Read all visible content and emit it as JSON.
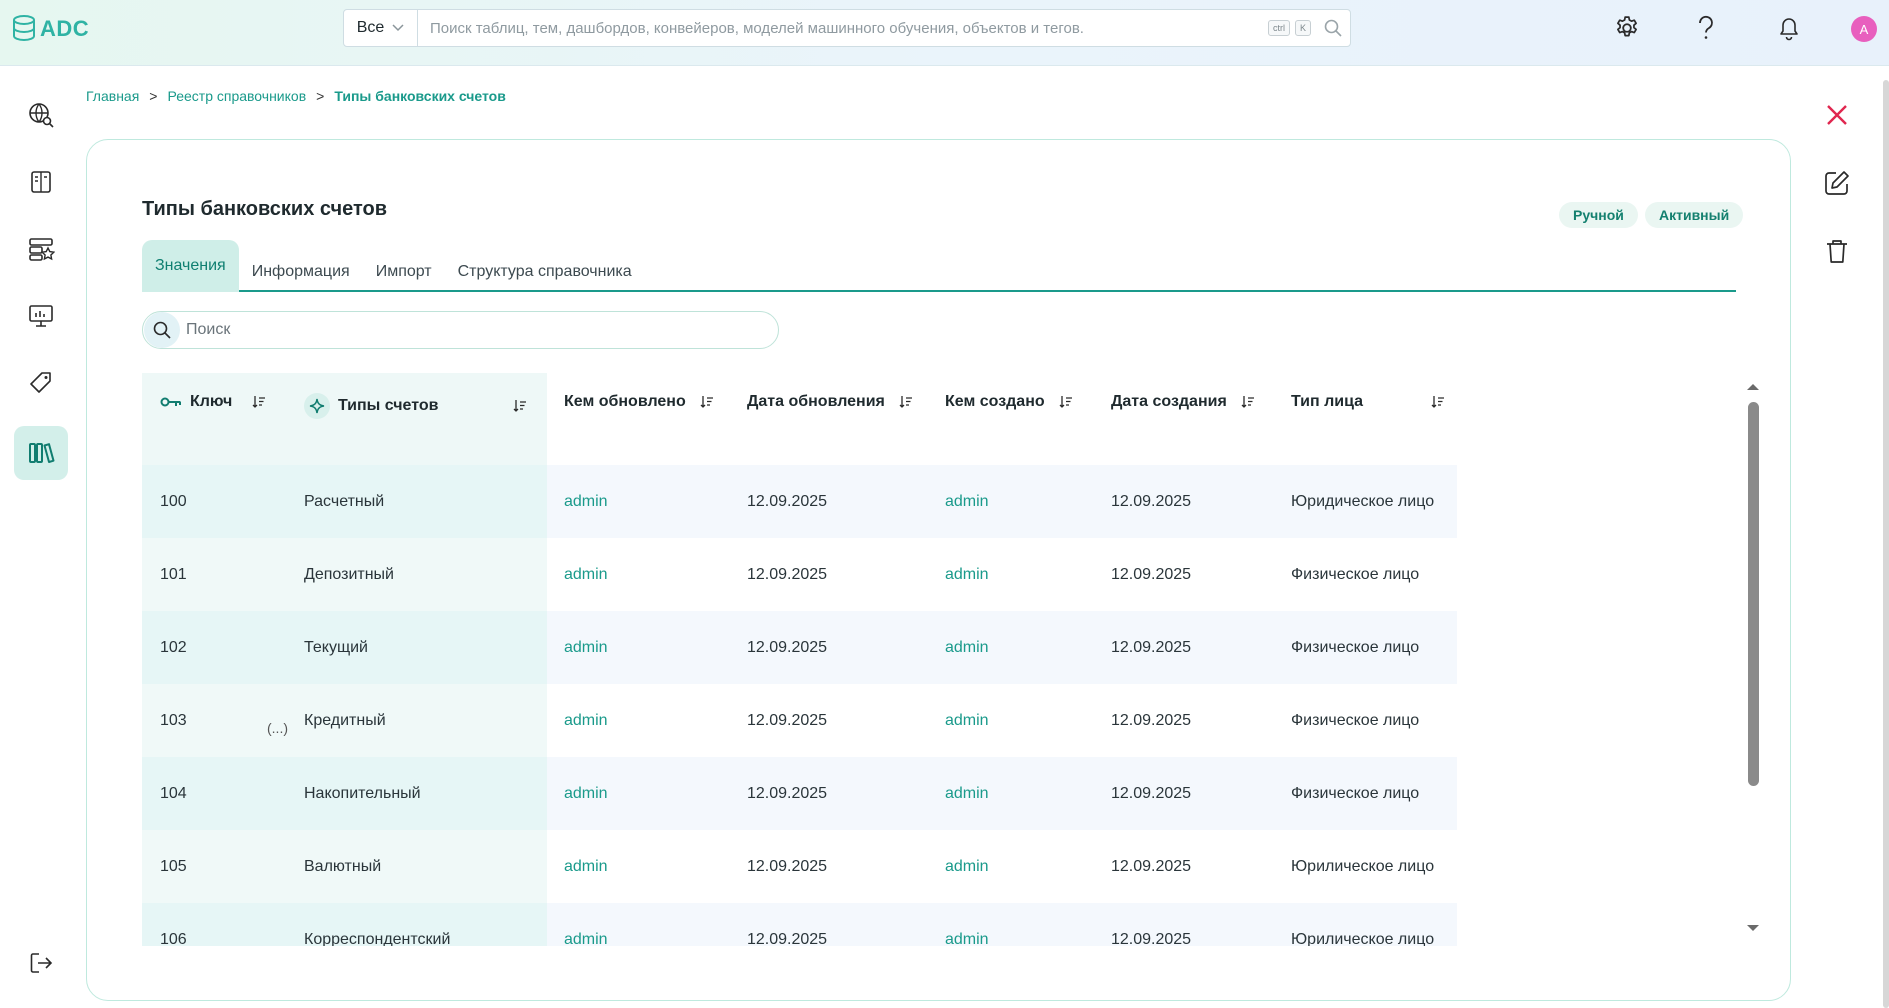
{
  "app": {
    "logo_text": "ADC",
    "brand_color": "#2fb3a4",
    "search": {
      "scope": "Все",
      "placeholder": "Поиск таблиц, тем, дашбордов, конвейеров, моделей машинного обучения, объектов и тегов.",
      "kbd_ctrl": "ctrl",
      "kbd_k": "K"
    },
    "avatar_initial": "A"
  },
  "nav": {
    "items": [
      {
        "icon": "globe-search-icon"
      },
      {
        "icon": "book-icon"
      },
      {
        "icon": "data-star-icon"
      },
      {
        "icon": "monitor-icon"
      },
      {
        "icon": "tag-icon"
      },
      {
        "icon": "library-icon",
        "active": true
      }
    ],
    "logout_icon": "logout-icon"
  },
  "breadcrumb": {
    "home": "Главная",
    "registry": "Реестр справочников",
    "current": "Типы банковских счетов",
    "sep": ">"
  },
  "card": {
    "title": "Типы банковских счетов",
    "badges": [
      "Ручной",
      "Активный"
    ],
    "tabs": [
      "Значения",
      "Информация",
      "Импорт",
      "Структура справочника"
    ],
    "search_placeholder": "Поиск"
  },
  "table": {
    "columns": [
      "Ключ",
      "Типы счетов",
      "Кем обновлено",
      "Дата обновления",
      "Кем создано",
      "Дата создания",
      "Тип лица"
    ],
    "ellipsis": "(...)",
    "rows": [
      {
        "key": "100",
        "type": "Расчетный",
        "updated_by": "admin",
        "updated_at": "12.09.2025",
        "created_by": "admin",
        "created_at": "12.09.2025",
        "person": "Юридическое лицо"
      },
      {
        "key": "101",
        "type": "Депозитный",
        "updated_by": "admin",
        "updated_at": "12.09.2025",
        "created_by": "admin",
        "created_at": "12.09.2025",
        "person": "Физическое лицо"
      },
      {
        "key": "102",
        "type": "Текущий",
        "updated_by": "admin",
        "updated_at": "12.09.2025",
        "created_by": "admin",
        "created_at": "12.09.2025",
        "person": "Физическое лицо"
      },
      {
        "key": "103",
        "type": "Кредитный",
        "updated_by": "admin",
        "updated_at": "12.09.2025",
        "created_by": "admin",
        "created_at": "12.09.2025",
        "person": "Физическое лицо"
      },
      {
        "key": "104",
        "type": "Накопительный",
        "updated_by": "admin",
        "updated_at": "12.09.2025",
        "created_by": "admin",
        "created_at": "12.09.2025",
        "person": "Физическое лицо"
      },
      {
        "key": "105",
        "type": "Валютный",
        "updated_by": "admin",
        "updated_at": "12.09.2025",
        "created_by": "admin",
        "created_at": "12.09.2025",
        "person": "Юрилическое лицо"
      },
      {
        "key": "106",
        "type": "Корреспондентский",
        "updated_by": "admin",
        "updated_at": "12.09.2025",
        "created_by": "admin",
        "created_at": "12.09.2025",
        "person": "Юрилическое лицо"
      }
    ]
  },
  "colors": {
    "accent": "#1a9a8b",
    "close": "#e0264f",
    "avatar": "#e85fbe"
  }
}
